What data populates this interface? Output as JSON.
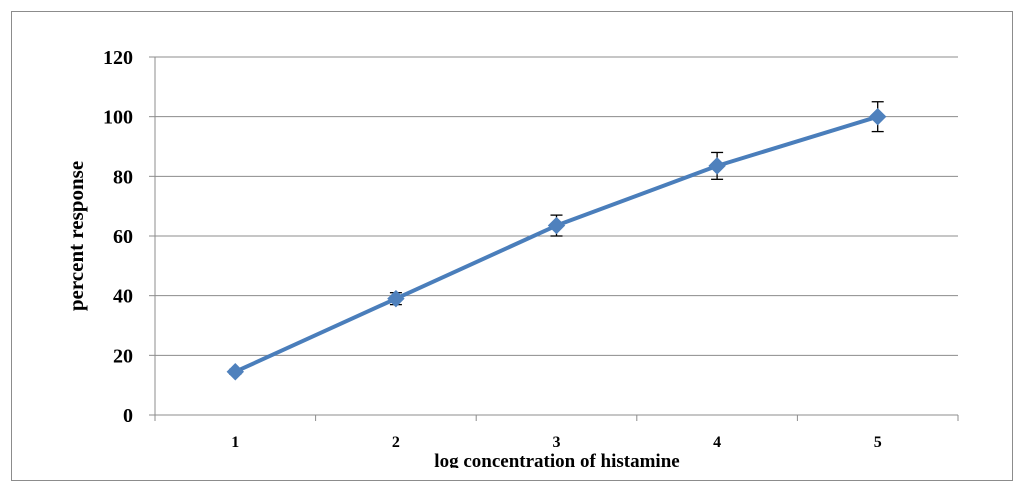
{
  "chart_data": {
    "type": "line",
    "title": "",
    "xlabel": "log concentration of histamine",
    "ylabel": "percent response",
    "categories": [
      "1",
      "2",
      "3",
      "4",
      "5"
    ],
    "series": [
      {
        "values": [
          14.5,
          39,
          63.5,
          83.5,
          100
        ],
        "error": [
          0.8,
          2.0,
          3.5,
          4.5,
          5.0
        ]
      }
    ],
    "ylim": [
      0,
      120
    ],
    "yticks": [
      "0",
      "20",
      "40",
      "60",
      "80",
      "100",
      "120"
    ],
    "grid": true,
    "legend": "none",
    "colors": {
      "line": "#4a7ebb",
      "marker": "#4f81bd",
      "grid": "#8c8c8c",
      "error_bar": "#000000",
      "frame": "#8c8c8c"
    }
  }
}
